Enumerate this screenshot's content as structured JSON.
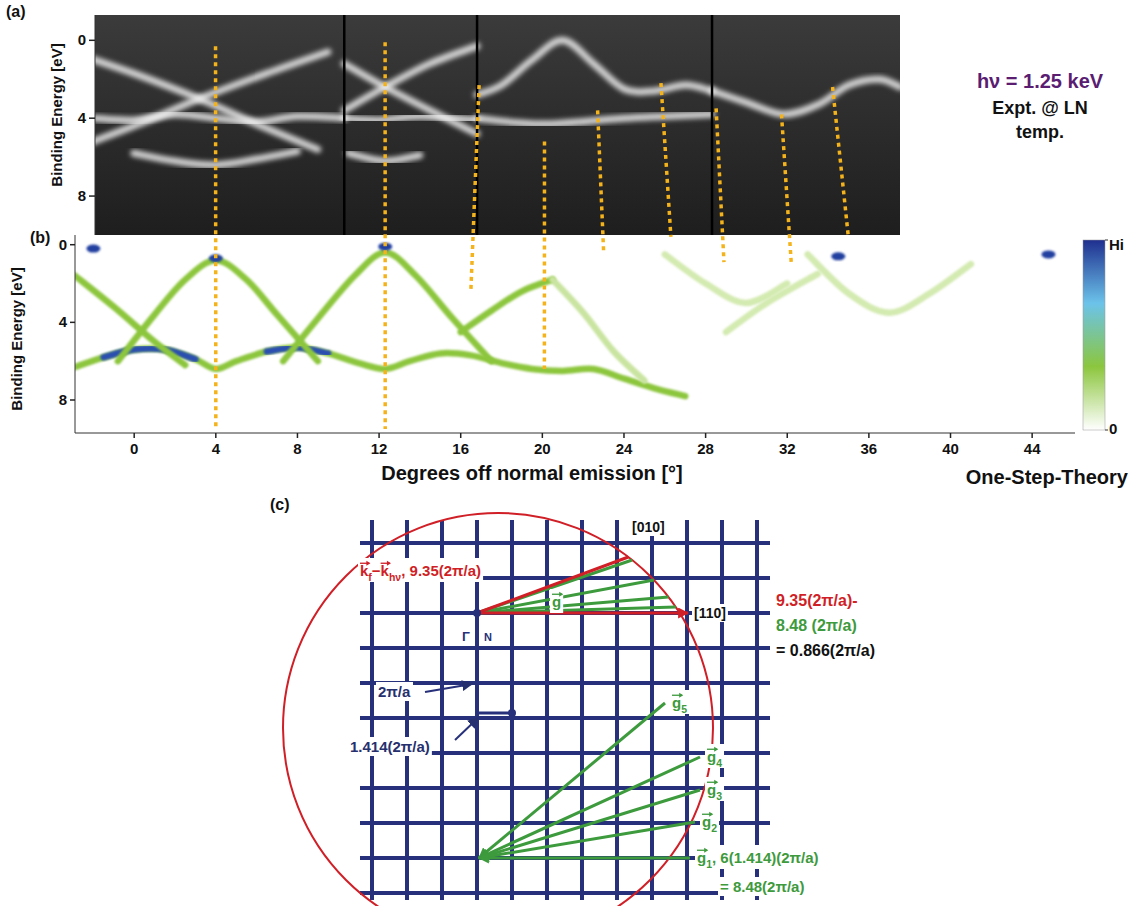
{
  "chart_data": [
    {
      "type": "band_map",
      "panel_label": "(a)",
      "y_label": "Binding Energy [eV]",
      "xlim": [
        -1.9,
        37.5
      ],
      "ylim": [
        10,
        -1.3
      ],
      "yticks": [
        0,
        4,
        8
      ],
      "tick_labels": "y",
      "frame_edges": [
        10.3,
        16.8,
        28.3
      ],
      "color": "#f2f2f2",
      "annotations": [
        {
          "text": "hν = 1.25 keV",
          "color": "#5a1d72"
        },
        {
          "text": "Expt. @ LN",
          "color": "#111111"
        },
        {
          "text": "temp.",
          "color": "#111111"
        }
      ],
      "series": [
        {
          "x": [
            -2.5,
            0,
            3.2,
            6,
            9
          ],
          "values": [
            0.8,
            1.7,
            3.0,
            4.3,
            5.6
          ]
        },
        {
          "x": [
            9.5,
            6.5,
            3.2,
            0.5,
            -2.5
          ],
          "values": [
            0.6,
            1.7,
            3.0,
            4.2,
            5.4
          ]
        },
        {
          "x": [
            -1.9,
            0,
            2,
            4,
            6,
            8,
            10.3
          ],
          "values": [
            4.0,
            4.1,
            3.8,
            4.0,
            4.2,
            3.9,
            4.0
          ]
        },
        {
          "x": [
            0,
            2,
            4,
            6,
            8
          ],
          "values": [
            5.8,
            6.2,
            6.4,
            6.1,
            5.7
          ]
        },
        {
          "x": [
            10.3,
            12.3,
            14.5,
            16.8
          ],
          "values": [
            1.2,
            2.4,
            3.6,
            4.8
          ]
        },
        {
          "x": [
            10.3,
            12.3,
            14.5,
            16.8
          ],
          "values": [
            3.6,
            2.4,
            1.2,
            0.3
          ]
        },
        {
          "x": [
            10.3,
            12,
            14,
            16.8
          ],
          "values": [
            4.0,
            4.1,
            3.9,
            4.1
          ]
        },
        {
          "x": [
            10.5,
            12.3,
            14
          ],
          "values": [
            5.8,
            6.2,
            5.9
          ]
        },
        {
          "x": [
            16.8,
            18,
            19.5,
            21,
            22.5,
            24,
            25.5,
            27,
            28.3
          ],
          "values": [
            2.8,
            2.3,
            1.0,
            0.0,
            1.2,
            2.5,
            2.6,
            2.3,
            2.6
          ]
        },
        {
          "x": [
            16.8,
            20,
            24,
            28.3
          ],
          "values": [
            4.0,
            4.3,
            4.0,
            3.8
          ]
        },
        {
          "x": [
            28.3,
            30,
            31.8,
            33.5,
            35,
            36.5,
            37.5
          ],
          "values": [
            2.6,
            3.2,
            3.8,
            3.3,
            2.3,
            2.0,
            2.4
          ]
        }
      ]
    },
    {
      "type": "band_map",
      "panel_label": "(b)",
      "title": "One-Step-Theory",
      "x_label": "Degrees off normal emission [°]",
      "y_label": "Binding Energy [eV]",
      "xlim": [
        -2.9,
        46.1
      ],
      "ylim": [
        9.7,
        -0.5
      ],
      "xticks": [
        0,
        4,
        8,
        12,
        16,
        20,
        24,
        28,
        32,
        36,
        40,
        44
      ],
      "yticks": [
        0,
        4,
        8
      ],
      "colorbar": {
        "range": [
          0,
          1
        ],
        "ticks": [
          {
            "value": 1,
            "label": "Hi"
          },
          0
        ],
        "colors": [
          "#ffffff",
          "#8cc63e",
          "#6cc3ea",
          "#1f2f8f"
        ]
      },
      "series": [
        {
          "color": "#8cc63e",
          "x": [
            -2.9,
            -1.5,
            0,
            1.5,
            3,
            4,
            5,
            6.5,
            8,
            9.5,
            11,
            12.3,
            13.5,
            15,
            16.5,
            18,
            19.5,
            21,
            22.5,
            24,
            25.5,
            27
          ],
          "values": [
            6.3,
            5.8,
            5.4,
            5.4,
            5.9,
            6.4,
            6.0,
            5.5,
            5.3,
            5.6,
            6.1,
            6.4,
            6.0,
            5.6,
            5.7,
            6.1,
            6.4,
            6.5,
            6.4,
            6.9,
            7.4,
            7.8
          ]
        },
        {
          "color": "#2a4fb0",
          "x": [
            -1.5,
            0,
            1.5,
            3
          ],
          "values": [
            5.8,
            5.4,
            5.4,
            5.9
          ]
        },
        {
          "color": "#2a4fb0",
          "x": [
            6.5,
            8,
            9.5
          ],
          "values": [
            5.5,
            5.3,
            5.6
          ]
        },
        {
          "color": "#8cc63e",
          "x": [
            -2.9,
            -1,
            1,
            2.5
          ],
          "values": [
            1.6,
            3.2,
            5.0,
            6.2
          ]
        },
        {
          "color": "#8cc63e",
          "x": [
            -0.8,
            1,
            2.5,
            4,
            5.5,
            7,
            9
          ],
          "values": [
            6.0,
            3.6,
            1.8,
            0.8,
            1.8,
            3.6,
            6.0
          ]
        },
        {
          "color": "#8cc63e",
          "x": [
            7.3,
            9,
            10.8,
            12.3,
            13.8,
            15.6,
            17.5
          ],
          "values": [
            6.0,
            3.8,
            1.6,
            0.4,
            1.6,
            3.8,
            6.0
          ]
        },
        {
          "color": "#8cc63e",
          "x": [
            16,
            17.5,
            19,
            20.5
          ],
          "values": [
            4.5,
            3.4,
            2.4,
            1.8
          ]
        },
        {
          "color": "#c9e4a0",
          "x": [
            20.5,
            22,
            23.5,
            25
          ],
          "values": [
            1.8,
            3.5,
            5.5,
            7.0
          ]
        },
        {
          "color": "#d3eab0",
          "x": [
            26,
            28,
            30,
            32
          ],
          "values": [
            0.5,
            2.0,
            3.0,
            2.0
          ]
        },
        {
          "color": "#d3eab0",
          "x": [
            33,
            35,
            37,
            39,
            41
          ],
          "values": [
            0.5,
            2.5,
            3.5,
            2.5,
            1.0
          ]
        },
        {
          "color": "#d3eab0",
          "x": [
            29,
            31,
            33.5
          ],
          "values": [
            4.5,
            3.0,
            1.5
          ]
        },
        {
          "type": "scatter",
          "color": "#2340a0",
          "x": [
            -2,
            4.0,
            12.3,
            34.5,
            44.8
          ],
          "values": [
            0.2,
            0.7,
            0.1,
            0.6,
            0.5
          ]
        }
      ]
    }
  ],
  "guides": {
    "color": "#f5b31b",
    "lines": [
      {
        "x": [
          4.0,
          4.0
        ],
        "energy": [
          0.3,
          9.5
        ]
      },
      {
        "x": [
          12.3,
          12.3
        ],
        "energy": [
          0.1,
          9.5
        ]
      },
      {
        "x": [
          16.9,
          16.5
        ],
        "energy": [
          2.3,
          2.3
        ]
      },
      {
        "x": [
          20.1,
          20.1
        ],
        "energy": [
          5.2,
          6.4
        ]
      },
      {
        "x": [
          22.7,
          23.0
        ],
        "energy": [
          3.6,
          0.3
        ]
      },
      {
        "x": [
          25.8,
          26.3
        ],
        "energy": [
          2.2,
          -0.4
        ]
      },
      {
        "x": [
          28.5,
          28.9
        ],
        "energy": [
          3.5,
          0.9
        ]
      },
      {
        "x": [
          31.7,
          32.2
        ],
        "energy": [
          3.8,
          1.0
        ]
      },
      {
        "x": [
          34.2,
          35.0
        ],
        "energy": [
          2.4,
          -0.35
        ]
      }
    ]
  },
  "diagram": {
    "panel_label": "(c)",
    "direction_010": "[010]",
    "direction_110": "[110]",
    "kf_label": {
      "color": "#d01f26",
      "segments": [
        {
          "text": "k",
          "style": "vec"
        },
        {
          "text": "f",
          "style": "sub"
        },
        {
          "text": " − ",
          "style": "plain"
        },
        {
          "text": "k",
          "style": "vec"
        },
        {
          "text": "hν",
          "style": "sub"
        },
        {
          "text": ", 9.35(2π/a)",
          "style": "plain"
        }
      ]
    },
    "g_label": {
      "color": "#3d9a3d",
      "segments": [
        {
          "text": "g",
          "style": "vec"
        }
      ]
    },
    "difference": [
      {
        "text": "9.35(2π/a)-",
        "color": "#d01f26"
      },
      {
        "text": "8.48 (2π/a)",
        "color": "#3d9a3d"
      },
      {
        "text": "= 0.866(2π/a)",
        "color": "#111111"
      }
    ],
    "gamma": "Γ",
    "n_point": "N",
    "spacing_labels": [
      {
        "text": "2π/a",
        "color": "#26306e"
      },
      {
        "text": "1.414(2π/a)",
        "color": "#26306e"
      }
    ],
    "g_vectors": [
      {
        "color": "#3d9a3d",
        "segments": [
          {
            "text": "g",
            "style": "vec"
          },
          {
            "text": "5",
            "style": "sub"
          }
        ]
      },
      {
        "color": "#3d9a3d",
        "segments": [
          {
            "text": "g",
            "style": "vec"
          },
          {
            "text": "4",
            "style": "sub"
          }
        ]
      },
      {
        "color": "#3d9a3d",
        "segments": [
          {
            "text": "g",
            "style": "vec"
          },
          {
            "text": "3",
            "style": "sub"
          }
        ]
      },
      {
        "color": "#3d9a3d",
        "segments": [
          {
            "text": "g",
            "style": "vec"
          },
          {
            "text": "2",
            "style": "sub"
          }
        ]
      },
      {
        "color": "#3d9a3d",
        "segments": [
          {
            "text": "g",
            "style": "vec"
          },
          {
            "text": "1",
            "style": "sub"
          },
          {
            "text": ", 6(1.414)(2π/a)",
            "style": "plain"
          }
        ]
      }
    ],
    "g1_value": {
      "text": "= 8.48(2π/a)",
      "color": "#3d9a3d"
    }
  }
}
